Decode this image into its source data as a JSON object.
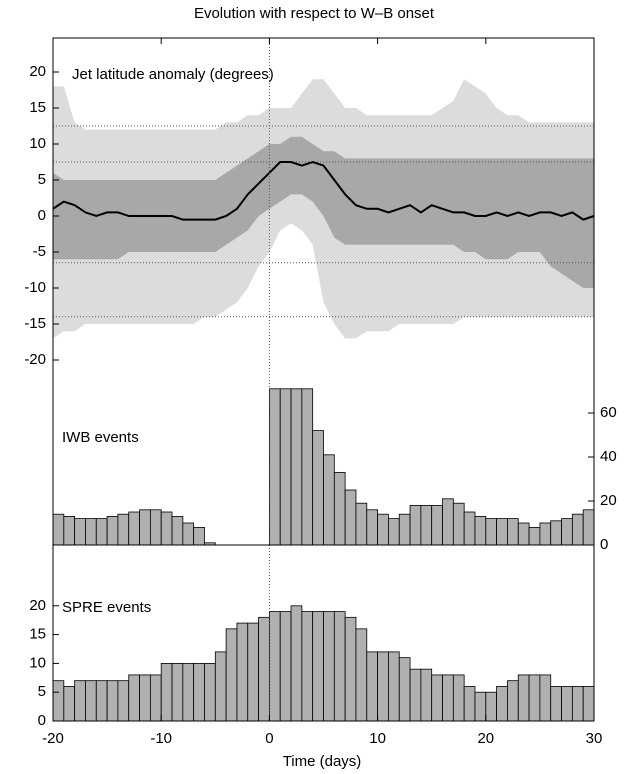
{
  "figure": {
    "title": "Evolution with respect to W–B onset",
    "xlabel": "Time (days)",
    "xlim": [
      -20,
      30
    ],
    "xticks": [
      -20,
      -10,
      0,
      10,
      20,
      30
    ],
    "vline": 0
  },
  "chart_data": [
    {
      "type": "line",
      "label": "Jet latitude anomaly (degrees)",
      "ylim": [
        -20,
        25
      ],
      "yticks": [
        -20,
        -15,
        -10,
        -5,
        0,
        5,
        10,
        15,
        20
      ],
      "axis_side": "left",
      "hlines": [
        12.5,
        7.5,
        -6.5,
        -14
      ],
      "x": [
        -20,
        -19,
        -18,
        -17,
        -16,
        -15,
        -14,
        -13,
        -12,
        -11,
        -10,
        -9,
        -8,
        -7,
        -6,
        -5,
        -4,
        -3,
        -2,
        -1,
        0,
        1,
        2,
        3,
        4,
        5,
        6,
        7,
        8,
        9,
        10,
        11,
        12,
        13,
        14,
        15,
        16,
        17,
        18,
        19,
        20,
        21,
        22,
        23,
        24,
        25,
        26,
        27,
        28,
        29,
        30
      ],
      "bands": [
        {
          "color": "#dcdcdc",
          "upper": [
            18,
            18,
            13,
            12,
            12,
            12,
            12,
            12,
            12,
            12,
            12,
            12,
            12,
            12,
            12,
            12,
            13,
            13,
            14,
            14,
            15,
            15,
            15,
            17,
            19,
            19,
            17,
            15,
            15,
            14,
            14,
            14,
            14,
            14,
            14,
            14,
            15,
            16,
            19,
            18,
            17,
            15,
            14,
            14,
            13,
            13,
            13,
            13,
            13,
            13,
            13
          ],
          "lower": [
            -17,
            -16,
            -16,
            -15,
            -15,
            -15,
            -15,
            -15,
            -15,
            -15,
            -15,
            -15,
            -15,
            -15,
            -14,
            -14,
            -13,
            -12,
            -10,
            -7,
            -5,
            -2,
            -1,
            -2,
            -4,
            -12,
            -15,
            -17,
            -17,
            -16,
            -16,
            -16,
            -15,
            -15,
            -15,
            -15,
            -15,
            -15,
            -14,
            -14,
            -14,
            -14,
            -14,
            -14,
            -14,
            -14,
            -14,
            -14,
            -14,
            -14,
            -14
          ]
        },
        {
          "color": "#a8a8a8",
          "upper": [
            6,
            5,
            5,
            5,
            5,
            5,
            5,
            5,
            5,
            5,
            5,
            5,
            5,
            5,
            5,
            5,
            6,
            7,
            8,
            9,
            10,
            10,
            11,
            11,
            10,
            9,
            9,
            8,
            8,
            8,
            8,
            8,
            8,
            8,
            8,
            8,
            8,
            8,
            8,
            8,
            8,
            8,
            8,
            8,
            8,
            8,
            8,
            8,
            8,
            8,
            8
          ],
          "lower": [
            -6,
            -6,
            -6,
            -6,
            -6,
            -6,
            -6,
            -5,
            -5,
            -5,
            -5,
            -5,
            -5,
            -5,
            -5,
            -5,
            -4,
            -3,
            -2,
            0,
            1,
            2,
            3,
            3,
            2,
            0,
            -3,
            -4,
            -4,
            -4,
            -4,
            -4,
            -4,
            -4,
            -4,
            -4,
            -4,
            -4,
            -5,
            -5,
            -6,
            -6,
            -6,
            -5,
            -5,
            -5,
            -7,
            -8,
            -9,
            -10,
            -10
          ]
        }
      ],
      "series": [
        {
          "color": "#000000",
          "values": [
            1,
            2,
            1.5,
            0.5,
            0,
            0.5,
            0.5,
            0,
            0,
            0,
            0,
            0,
            -0.5,
            -0.5,
            -0.5,
            -0.5,
            0,
            1,
            3,
            4.5,
            6,
            7.5,
            7.5,
            7,
            7.5,
            7,
            5,
            3,
            1.5,
            1,
            1,
            0.5,
            1,
            1.5,
            0.5,
            1.5,
            1,
            0.5,
            0.5,
            0,
            0,
            0.5,
            0,
            0.5,
            0,
            0.5,
            0.5,
            0,
            0.5,
            -0.5,
            0
          ]
        }
      ]
    },
    {
      "type": "histogram",
      "label": "IWB events",
      "ylim": [
        0,
        80
      ],
      "yticks": [
        0,
        20,
        40,
        60
      ],
      "axis_side": "right",
      "color": "#b0b0b0",
      "bins": [
        -20,
        -19,
        -18,
        -17,
        -16,
        -15,
        -14,
        -13,
        -12,
        -11,
        -10,
        -9,
        -8,
        -7,
        -6,
        -5,
        -4,
        -3,
        -2,
        -1,
        0,
        1,
        2,
        3,
        4,
        5,
        6,
        7,
        8,
        9,
        10,
        11,
        12,
        13,
        14,
        15,
        16,
        17,
        18,
        19,
        20,
        21,
        22,
        23,
        24,
        25,
        26,
        27,
        28,
        29,
        30
      ],
      "values": [
        14,
        13,
        12,
        12,
        12,
        13,
        14,
        15,
        16,
        16,
        15,
        13,
        10,
        8,
        1,
        0,
        0,
        0,
        0,
        0,
        71,
        71,
        71,
        71,
        52,
        41,
        33,
        25,
        19,
        16,
        14,
        12,
        14,
        18,
        18,
        18,
        21,
        19,
        15,
        13,
        12,
        12,
        12,
        10,
        8,
        10,
        11,
        12,
        14,
        16
      ]
    },
    {
      "type": "histogram",
      "label": "SPRE events",
      "ylim": [
        0,
        25
      ],
      "yticks": [
        0,
        5,
        10,
        15,
        20
      ],
      "axis_side": "left",
      "color": "#b0b0b0",
      "bins": [
        -20,
        -19,
        -18,
        -17,
        -16,
        -15,
        -14,
        -13,
        -12,
        -11,
        -10,
        -9,
        -8,
        -7,
        -6,
        -5,
        -4,
        -3,
        -2,
        -1,
        0,
        1,
        2,
        3,
        4,
        5,
        6,
        7,
        8,
        9,
        10,
        11,
        12,
        13,
        14,
        15,
        16,
        17,
        18,
        19,
        20,
        21,
        22,
        23,
        24,
        25,
        26,
        27,
        28,
        29,
        30
      ],
      "values": [
        7,
        6,
        7,
        7,
        7,
        7,
        7,
        8,
        8,
        8,
        10,
        10,
        10,
        10,
        10,
        12,
        16,
        17,
        17,
        18,
        19,
        19,
        20,
        19,
        19,
        19,
        19,
        18,
        16,
        12,
        12,
        12,
        11,
        9,
        9,
        8,
        8,
        8,
        6,
        5,
        5,
        6,
        7,
        8,
        8,
        8,
        6,
        6,
        6,
        6
      ]
    }
  ]
}
